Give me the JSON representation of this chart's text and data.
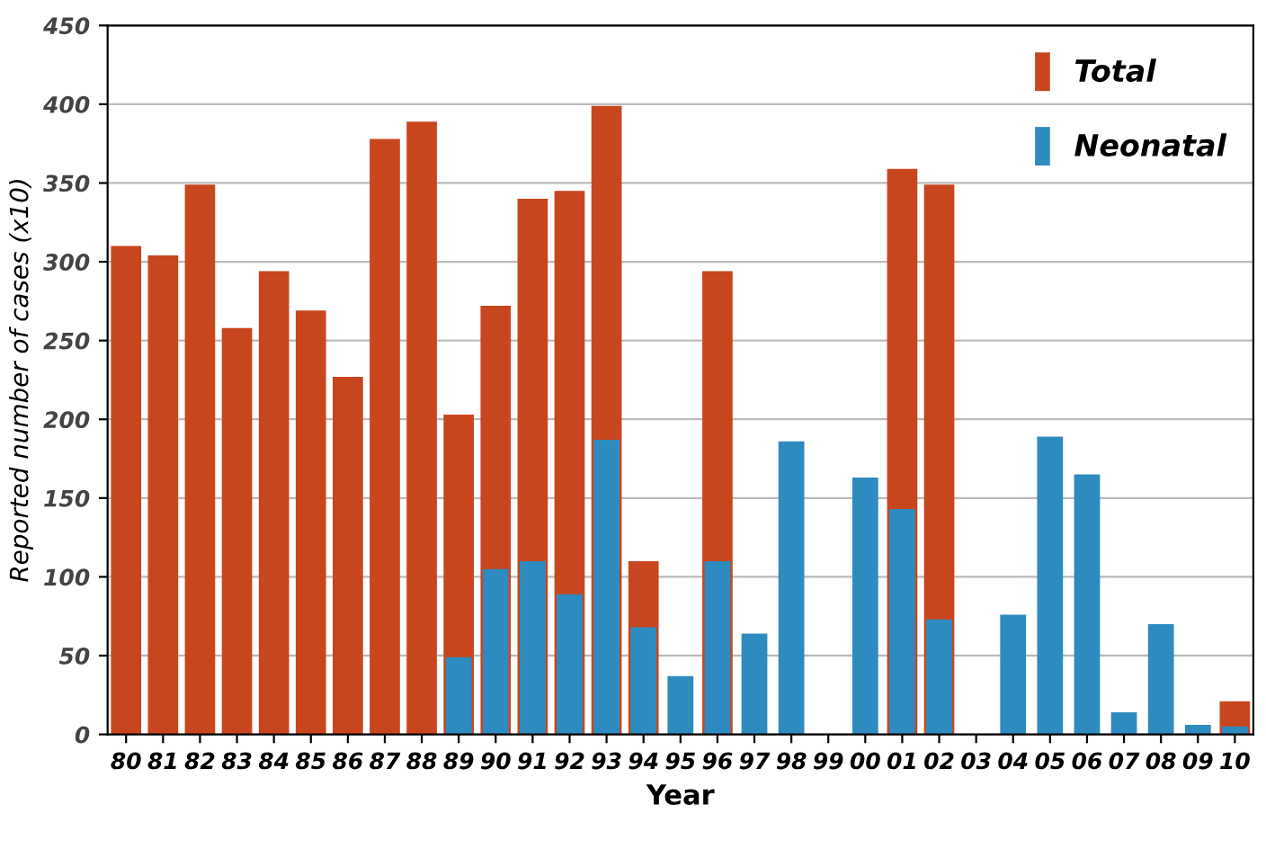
{
  "chart_data": {
    "type": "bar",
    "xlabel": "Year",
    "ylabel": "Reported number of cases (x10)",
    "categories": [
      "80",
      "81",
      "82",
      "83",
      "84",
      "85",
      "86",
      "87",
      "88",
      "89",
      "90",
      "91",
      "92",
      "93",
      "94",
      "95",
      "96",
      "97",
      "98",
      "99",
      "00",
      "01",
      "02",
      "03",
      "04",
      "05",
      "06",
      "07",
      "08",
      "09",
      "10"
    ],
    "series": [
      {
        "name": "Total",
        "color": "#c8461e",
        "values": [
          310,
          304,
          349,
          258,
          294,
          269,
          227,
          378,
          389,
          203,
          272,
          340,
          345,
          399,
          110,
          null,
          294,
          null,
          null,
          null,
          null,
          359,
          349,
          null,
          null,
          null,
          null,
          null,
          null,
          null,
          21
        ]
      },
      {
        "name": "Neonatal",
        "color": "#2e8bc0",
        "values": [
          null,
          null,
          null,
          null,
          null,
          null,
          null,
          null,
          null,
          49,
          105,
          110,
          89,
          187,
          68,
          37,
          110,
          64,
          186,
          null,
          163,
          143,
          73,
          null,
          76,
          189,
          165,
          14,
          70,
          6,
          5
        ]
      }
    ],
    "ylim": [
      0,
      450
    ],
    "yticks": [
      0,
      50,
      100,
      150,
      200,
      250,
      300,
      350,
      400,
      450
    ],
    "grid": "y",
    "legend": "top right"
  }
}
